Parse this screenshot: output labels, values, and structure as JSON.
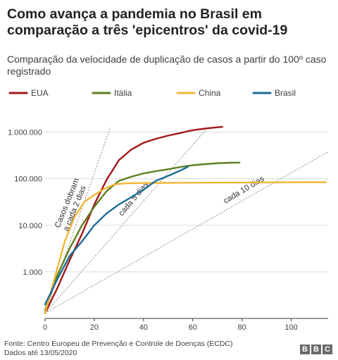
{
  "header": {
    "title": "Como avança a pandemia no Brasil em comparação a três 'epicentros' da covid-19",
    "subtitle": "Comparação da velocidade de duplicação de casos a partir do 100º caso registrado"
  },
  "footer": {
    "source": "Fonte: Centro Europeu de Prevenção e Controle de Doenças (ECDC)",
    "date": "Dados até 13/05/2020",
    "logo_letters": [
      "B",
      "B",
      "C"
    ]
  },
  "chart_data": {
    "type": "line",
    "title": "Como avança a pandemia no Brasil em comparação a três 'epicentros' da covid-19",
    "subtitle": "Comparação da velocidade de duplicação de casos a partir do 100º caso registrado",
    "xlabel": "",
    "ylabel": "",
    "x_scale": "linear",
    "y_scale": "log",
    "xlim": [
      0,
      115
    ],
    "ylim": [
      100,
      1300000
    ],
    "x_ticks": [
      0,
      20,
      40,
      60,
      80,
      100
    ],
    "x_tick_labels": [
      "0",
      "20",
      "40",
      "60",
      "80",
      "100"
    ],
    "y_ticks": [
      1000,
      10000,
      100000,
      1000000
    ],
    "y_tick_labels": [
      "1.000",
      "10.000",
      "100.000",
      "1.000.000"
    ],
    "grid": "horizontal",
    "legend_position": "top",
    "series": [
      {
        "name": "EUA",
        "color": "#a31818",
        "x": [
          0,
          5,
          10,
          15,
          20,
          25,
          30,
          35,
          40,
          45,
          50,
          55,
          60,
          65,
          70,
          72
        ],
        "y": [
          130,
          450,
          1800,
          6500,
          28000,
          95000,
          250000,
          420000,
          590000,
          720000,
          840000,
          960000,
          1100000,
          1190000,
          1270000,
          1300000
        ]
      },
      {
        "name": "Itália",
        "color": "#5d7f1e",
        "x": [
          0,
          5,
          10,
          15,
          20,
          25,
          30,
          35,
          40,
          45,
          50,
          55,
          60,
          65,
          70,
          75,
          79
        ],
        "y": [
          150,
          850,
          3200,
          10000,
          25000,
          54000,
          90000,
          110000,
          130000,
          145000,
          160000,
          178000,
          195000,
          205000,
          215000,
          220000,
          222000
        ]
      },
      {
        "name": "China",
        "color": "#f2b634",
        "x": [
          0,
          5,
          8,
          12,
          16,
          20,
          24,
          28,
          32,
          36,
          40,
          50,
          60,
          80,
          100,
          114
        ],
        "y": [
          130,
          1200,
          4500,
          15000,
          32000,
          45000,
          60000,
          75000,
          79000,
          80500,
          81000,
          81500,
          82000,
          82800,
          83500,
          84000
        ]
      },
      {
        "name": "Brasil",
        "color": "#1a6e96",
        "x": [
          0,
          5,
          10,
          15,
          20,
          25,
          30,
          35,
          40,
          45,
          50,
          55,
          58
        ],
        "y": [
          200,
          700,
          2200,
          4500,
          10000,
          18000,
          28000,
          40000,
          58000,
          90000,
          115000,
          150000,
          180000
        ]
      }
    ],
    "reference_lines": [
      {
        "label": "Casos dobram a cada 2 dias",
        "doubling_days": 2
      },
      {
        "label": "cada 5 dias",
        "doubling_days": 5
      },
      {
        "label": "cada 10 dias",
        "doubling_days": 10
      }
    ]
  }
}
